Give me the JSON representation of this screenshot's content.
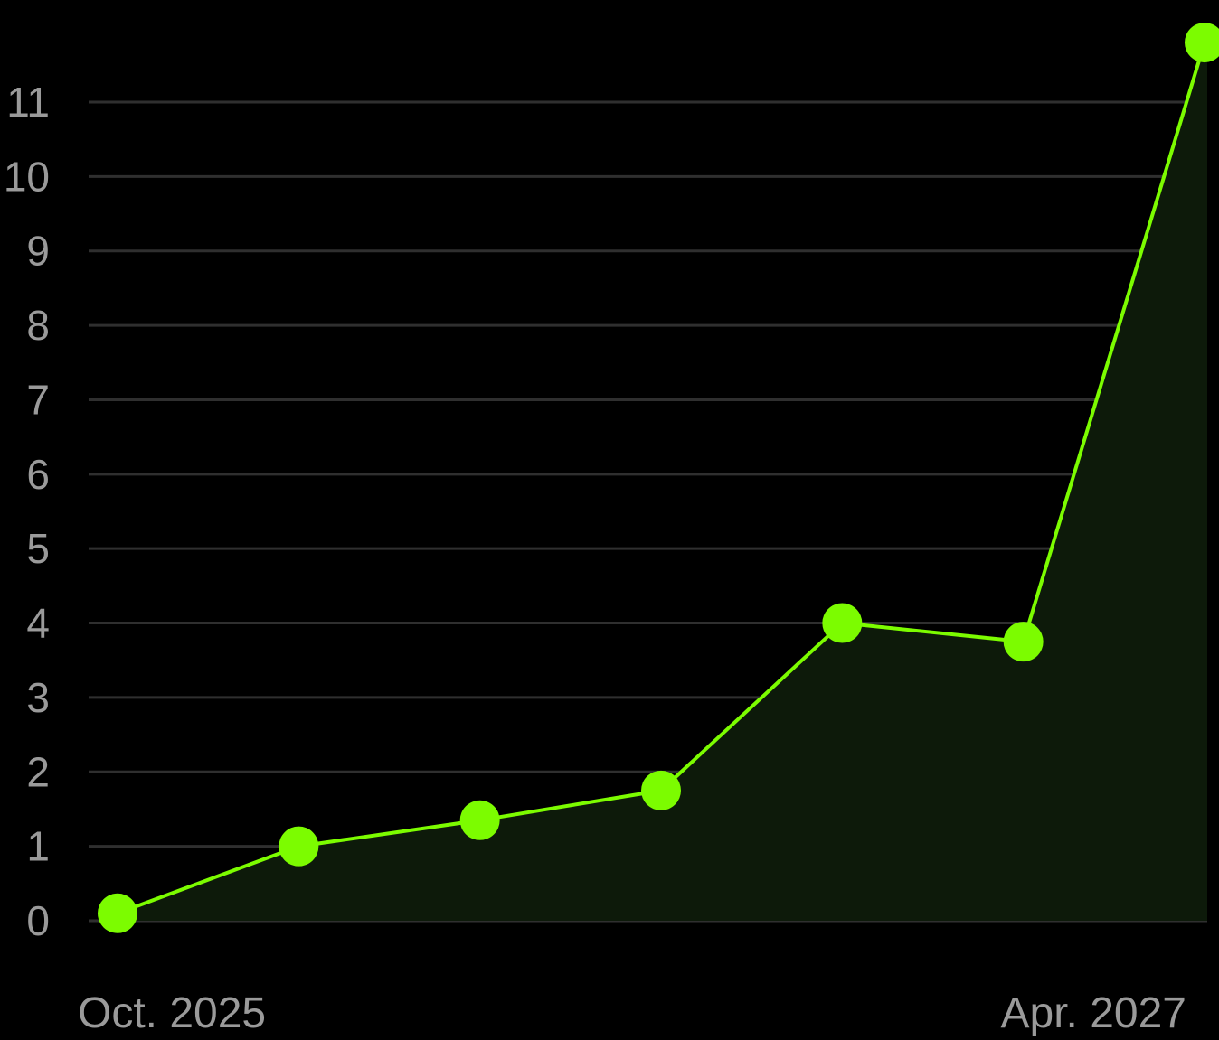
{
  "chart_data": {
    "type": "area",
    "title": "",
    "xlabel": "",
    "ylabel": "",
    "x": [
      "2025-10",
      "2026-01",
      "2026-04",
      "2026-07",
      "2026-10",
      "2027-01",
      "2027-04"
    ],
    "series": [
      {
        "values": [
          0.1,
          1.0,
          1.35,
          1.75,
          4.0,
          3.75,
          11.8
        ]
      }
    ],
    "ylim": [
      0,
      11.8
    ],
    "yticks": [
      "0",
      "1",
      "2",
      "3",
      "4",
      "5",
      "6",
      "7",
      "8",
      "9",
      "10",
      "11"
    ],
    "xtick_labels": [
      {
        "x": "2025-10",
        "label": "Oct. 2025"
      },
      {
        "x": "2027-04",
        "label": "Apr. 2027"
      }
    ],
    "grid": true,
    "legend": "none",
    "colors": {
      "background": "#000000",
      "line": "#7cfc00",
      "marker": "#7cfc00",
      "fill": "#0d1a0a",
      "grid": "#2f2f2f",
      "tick_text": "#9a9a9a"
    }
  }
}
